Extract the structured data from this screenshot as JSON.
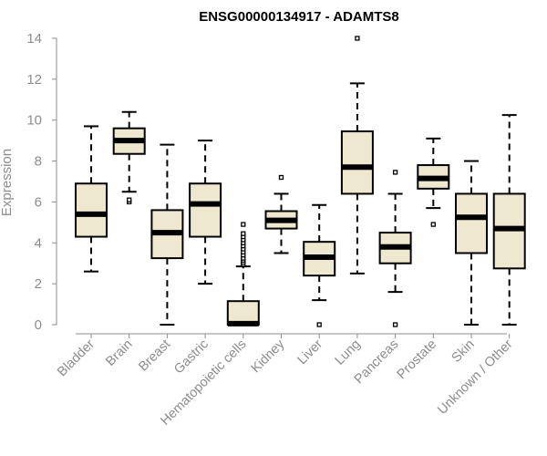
{
  "chart_data": {
    "type": "boxplot",
    "title": "ENSG00000134917 - ADAMTS8",
    "xlabel": "",
    "ylabel": "Expression",
    "ylim": [
      0,
      14
    ],
    "yticks": [
      0,
      2,
      4,
      6,
      8,
      10,
      12,
      14
    ],
    "box_color": "#efe8d1",
    "categories": [
      "Bladder",
      "Brain",
      "Breast",
      "Gastric",
      "Hematopoietic cells",
      "Kidney",
      "Liver",
      "Lung",
      "Pancreas",
      "Prostate",
      "Skin",
      "Unknown / Other"
    ],
    "boxes": [
      {
        "whisker_low": 2.6,
        "q1": 4.3,
        "median": 5.4,
        "q3": 6.9,
        "whisker_high": 9.7,
        "outliers": []
      },
      {
        "whisker_low": 6.5,
        "q1": 8.35,
        "median": 9.0,
        "q3": 9.6,
        "whisker_high": 10.4,
        "outliers": [
          6.0,
          6.1
        ]
      },
      {
        "whisker_low": 0.0,
        "q1": 3.25,
        "median": 4.5,
        "q3": 5.6,
        "whisker_high": 8.8,
        "outliers": []
      },
      {
        "whisker_low": 2.0,
        "q1": 4.3,
        "median": 5.9,
        "q3": 6.9,
        "whisker_high": 9.0,
        "outliers": []
      },
      {
        "whisker_low": 0.0,
        "q1": 0.0,
        "median": 0.05,
        "q3": 1.15,
        "whisker_high": 2.85,
        "outliers": [
          2.95,
          3.05,
          3.15,
          3.25,
          3.4,
          3.55,
          3.7,
          3.85,
          4.0,
          4.15,
          4.3,
          4.45,
          4.9
        ]
      },
      {
        "whisker_low": 3.5,
        "q1": 4.7,
        "median": 5.1,
        "q3": 5.55,
        "whisker_high": 6.4,
        "outliers": [
          7.2
        ]
      },
      {
        "whisker_low": 1.2,
        "q1": 2.4,
        "median": 3.3,
        "q3": 4.05,
        "whisker_high": 5.85,
        "outliers": [
          0.0
        ]
      },
      {
        "whisker_low": 2.5,
        "q1": 6.4,
        "median": 7.7,
        "q3": 9.45,
        "whisker_high": 11.8,
        "outliers": [
          14.0
        ]
      },
      {
        "whisker_low": 1.6,
        "q1": 3.0,
        "median": 3.8,
        "q3": 4.5,
        "whisker_high": 6.4,
        "outliers": [
          7.45,
          0.0
        ]
      },
      {
        "whisker_low": 5.7,
        "q1": 6.65,
        "median": 7.15,
        "q3": 7.8,
        "whisker_high": 9.1,
        "outliers": [
          4.9
        ]
      },
      {
        "whisker_low": 0.0,
        "q1": 3.5,
        "median": 5.25,
        "q3": 6.4,
        "whisker_high": 8.0,
        "outliers": []
      },
      {
        "whisker_low": 0.0,
        "q1": 2.75,
        "median": 4.7,
        "q3": 6.4,
        "whisker_high": 10.25,
        "outliers": []
      }
    ],
    "grid": false,
    "legend": "none"
  }
}
